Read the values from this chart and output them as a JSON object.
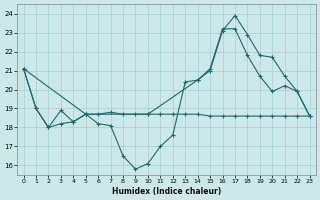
{
  "xlabel": "Humidex (Indice chaleur)",
  "bg_color": "#cce8e8",
  "grid_color": "#aad4d4",
  "line_color": "#1a6b6b",
  "xlim": [
    -0.5,
    23.5
  ],
  "ylim": [
    15.5,
    24.5
  ],
  "yticks": [
    16,
    17,
    18,
    19,
    20,
    21,
    22,
    23,
    24
  ],
  "xticks": [
    0,
    1,
    2,
    3,
    4,
    5,
    6,
    7,
    8,
    9,
    10,
    11,
    12,
    13,
    14,
    15,
    16,
    17,
    18,
    19,
    20,
    21,
    22,
    23
  ],
  "series": [
    {
      "x": [
        0,
        1,
        2,
        3,
        4,
        5,
        6,
        7,
        8,
        9,
        10,
        11,
        12,
        13,
        14,
        15,
        16,
        17,
        18,
        19,
        20,
        21,
        22,
        23
      ],
      "y": [
        21.1,
        19.0,
        18.0,
        18.2,
        18.3,
        18.7,
        18.7,
        18.8,
        18.7,
        18.7,
        18.7,
        18.7,
        18.7,
        18.7,
        18.7,
        18.6,
        18.6,
        18.6,
        18.6,
        18.6,
        18.6,
        18.6,
        18.6,
        18.6
      ]
    },
    {
      "x": [
        0,
        1,
        2,
        3,
        4,
        5,
        6,
        7,
        8,
        9,
        10,
        11,
        12,
        13,
        14,
        15,
        16,
        17,
        18,
        19,
        20,
        21,
        22,
        23
      ],
      "y": [
        21.1,
        19.0,
        18.0,
        18.9,
        18.3,
        18.7,
        18.2,
        18.1,
        16.5,
        15.8,
        16.1,
        17.0,
        17.6,
        20.4,
        20.5,
        21.1,
        23.2,
        23.2,
        21.8,
        20.7,
        19.9,
        20.2,
        19.9,
        18.6
      ]
    },
    {
      "x": [
        0,
        5,
        10,
        14,
        15,
        16,
        17,
        18,
        19,
        20,
        21,
        22,
        23
      ],
      "y": [
        21.1,
        18.7,
        18.7,
        20.5,
        21.0,
        23.1,
        23.9,
        22.9,
        21.8,
        21.7,
        20.7,
        19.9,
        18.6
      ]
    }
  ]
}
